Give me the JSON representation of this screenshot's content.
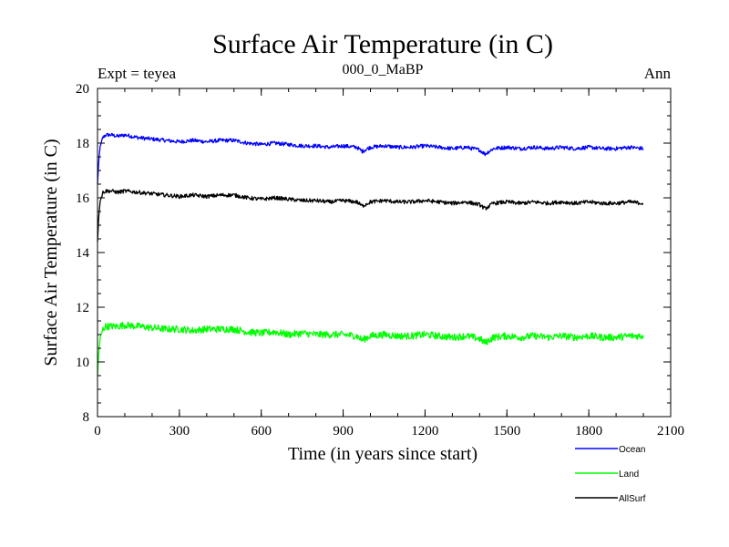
{
  "chart_data": {
    "type": "line",
    "title": "Surface Air Temperature (in C)",
    "subtitle_left": "Expt = teyea",
    "subtitle_center": "000_0_MaBP",
    "subtitle_right": "Ann",
    "xlabel": "Time (in years since start)",
    "ylabel": "Surface Air Temperature (in C)",
    "xlim": [
      0,
      2100
    ],
    "ylim": [
      8,
      20
    ],
    "xticks": [
      0,
      300,
      600,
      900,
      1200,
      1500,
      1800,
      2100
    ],
    "yticks": [
      8,
      10,
      12,
      14,
      16,
      18,
      20
    ],
    "x_minor_step": 100,
    "y_minor_step": 0.5,
    "legend_position": "bottom-right",
    "series": [
      {
        "name": "Ocean",
        "color": "#0000ff",
        "x": [
          0,
          5,
          10,
          20,
          30,
          50,
          75,
          100,
          150,
          200,
          250,
          300,
          350,
          400,
          450,
          500,
          550,
          600,
          650,
          700,
          750,
          800,
          850,
          900,
          950,
          970,
          1000,
          1050,
          1100,
          1150,
          1200,
          1250,
          1300,
          1350,
          1400,
          1420,
          1450,
          1500,
          1550,
          1600,
          1650,
          1700,
          1750,
          1800,
          1850,
          1900,
          1950,
          2000
        ],
        "y": [
          16.5,
          17.4,
          17.9,
          18.2,
          18.3,
          18.3,
          18.25,
          18.3,
          18.2,
          18.15,
          18.1,
          18.05,
          18.1,
          18.05,
          18.1,
          18.1,
          18.0,
          17.95,
          18.0,
          17.95,
          17.9,
          17.9,
          17.85,
          17.9,
          17.85,
          17.7,
          17.85,
          17.9,
          17.85,
          17.85,
          17.9,
          17.85,
          17.8,
          17.85,
          17.75,
          17.6,
          17.8,
          17.85,
          17.8,
          17.85,
          17.8,
          17.85,
          17.8,
          17.85,
          17.8,
          17.8,
          17.85,
          17.8
        ]
      },
      {
        "name": "Land",
        "color": "#00ff00",
        "x": [
          0,
          5,
          10,
          20,
          30,
          50,
          75,
          100,
          150,
          200,
          250,
          300,
          350,
          400,
          450,
          500,
          550,
          600,
          650,
          700,
          750,
          800,
          850,
          900,
          950,
          970,
          1000,
          1050,
          1100,
          1150,
          1200,
          1250,
          1300,
          1350,
          1400,
          1420,
          1450,
          1500,
          1550,
          1600,
          1650,
          1700,
          1750,
          1800,
          1850,
          1900,
          1950,
          2000
        ],
        "y": [
          9.5,
          10.4,
          10.9,
          11.2,
          11.3,
          11.3,
          11.3,
          11.35,
          11.3,
          11.25,
          11.2,
          11.2,
          11.15,
          11.2,
          11.2,
          11.2,
          11.1,
          11.05,
          11.1,
          11.0,
          11.05,
          11.0,
          11.0,
          11.0,
          10.95,
          10.8,
          10.95,
          11.0,
          10.95,
          10.95,
          11.0,
          10.95,
          10.9,
          10.95,
          10.85,
          10.7,
          10.9,
          10.95,
          10.9,
          10.95,
          10.9,
          10.95,
          10.9,
          10.95,
          10.9,
          10.9,
          10.95,
          10.95
        ]
      },
      {
        "name": "AllSurf",
        "color": "#000000",
        "x": [
          0,
          5,
          10,
          20,
          30,
          50,
          75,
          100,
          150,
          200,
          250,
          300,
          350,
          400,
          450,
          500,
          550,
          600,
          650,
          700,
          750,
          800,
          850,
          900,
          950,
          970,
          1000,
          1050,
          1100,
          1150,
          1200,
          1250,
          1300,
          1350,
          1400,
          1420,
          1450,
          1500,
          1550,
          1600,
          1650,
          1700,
          1750,
          1800,
          1850,
          1900,
          1950,
          2000
        ],
        "y": [
          14.4,
          15.4,
          15.9,
          16.2,
          16.25,
          16.25,
          16.2,
          16.25,
          16.2,
          16.15,
          16.1,
          16.05,
          16.1,
          16.05,
          16.1,
          16.1,
          16.0,
          15.95,
          16.0,
          15.95,
          15.9,
          15.9,
          15.85,
          15.9,
          15.85,
          15.7,
          15.85,
          15.9,
          15.85,
          15.85,
          15.9,
          15.85,
          15.8,
          15.85,
          15.75,
          15.6,
          15.8,
          15.85,
          15.8,
          15.85,
          15.8,
          15.85,
          15.8,
          15.85,
          15.8,
          15.8,
          15.85,
          15.8
        ]
      }
    ]
  }
}
